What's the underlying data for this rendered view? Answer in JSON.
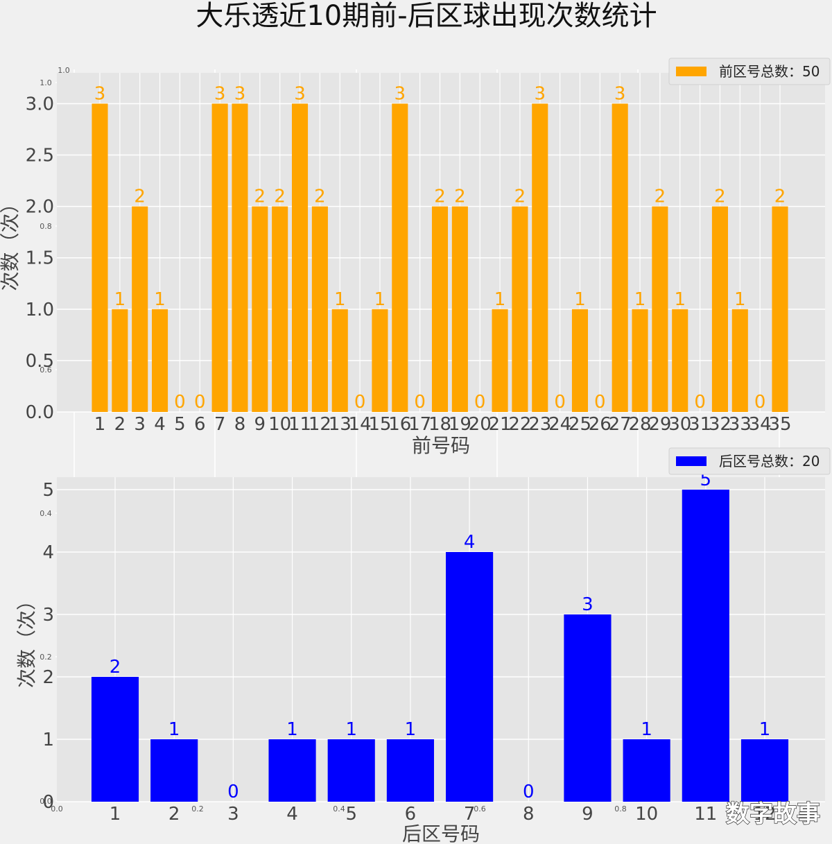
{
  "title": "大乐透近10期前-后区球出现次数统计",
  "watermark": "数字故事",
  "background_axes_ticks": [
    "0.0",
    "0.2",
    "0.4",
    "0.6",
    "0.8",
    "1.0"
  ],
  "colors": {
    "front": "#ffa500",
    "back": "#0000ff",
    "panel": "#e5e5e5",
    "grid": "#ffffff",
    "figure": "#f0f0f0"
  },
  "chart_data": [
    {
      "type": "bar",
      "id": "front",
      "title": "",
      "xlabel": "前号码",
      "ylabel": "次数（次）",
      "categories": [
        "1",
        "2",
        "3",
        "4",
        "5",
        "6",
        "7",
        "8",
        "9",
        "10",
        "11",
        "12",
        "13",
        "14",
        "15",
        "16",
        "17",
        "18",
        "19",
        "20",
        "21",
        "22",
        "23",
        "24",
        "25",
        "26",
        "27",
        "28",
        "29",
        "30",
        "31",
        "32",
        "33",
        "34",
        "35"
      ],
      "series": [
        {
          "name": "前区号总数：50",
          "values": [
            3,
            1,
            2,
            1,
            0,
            0,
            3,
            3,
            2,
            2,
            3,
            2,
            1,
            0,
            1,
            3,
            0,
            2,
            2,
            0,
            1,
            2,
            3,
            0,
            1,
            0,
            3,
            1,
            2,
            1,
            0,
            2,
            1,
            0,
            2
          ]
        }
      ],
      "yticks": [
        "0.0",
        "0.5",
        "1.0",
        "1.5",
        "2.0",
        "2.5",
        "3.0"
      ],
      "ylim": [
        0,
        3.3
      ],
      "grid": true,
      "legend": "top-right"
    },
    {
      "type": "bar",
      "id": "back",
      "title": "",
      "xlabel": "后区号码",
      "ylabel": "次数（次）",
      "categories": [
        "1",
        "2",
        "3",
        "4",
        "5",
        "6",
        "7",
        "8",
        "9",
        "10",
        "11",
        "12"
      ],
      "series": [
        {
          "name": "后区号总数：20",
          "values": [
            2,
            1,
            0,
            1,
            1,
            1,
            4,
            0,
            3,
            1,
            5,
            1
          ]
        }
      ],
      "yticks": [
        "0",
        "1",
        "2",
        "3",
        "4",
        "5"
      ],
      "ylim": [
        0,
        5.2
      ],
      "grid": true,
      "legend": "top-right"
    }
  ]
}
